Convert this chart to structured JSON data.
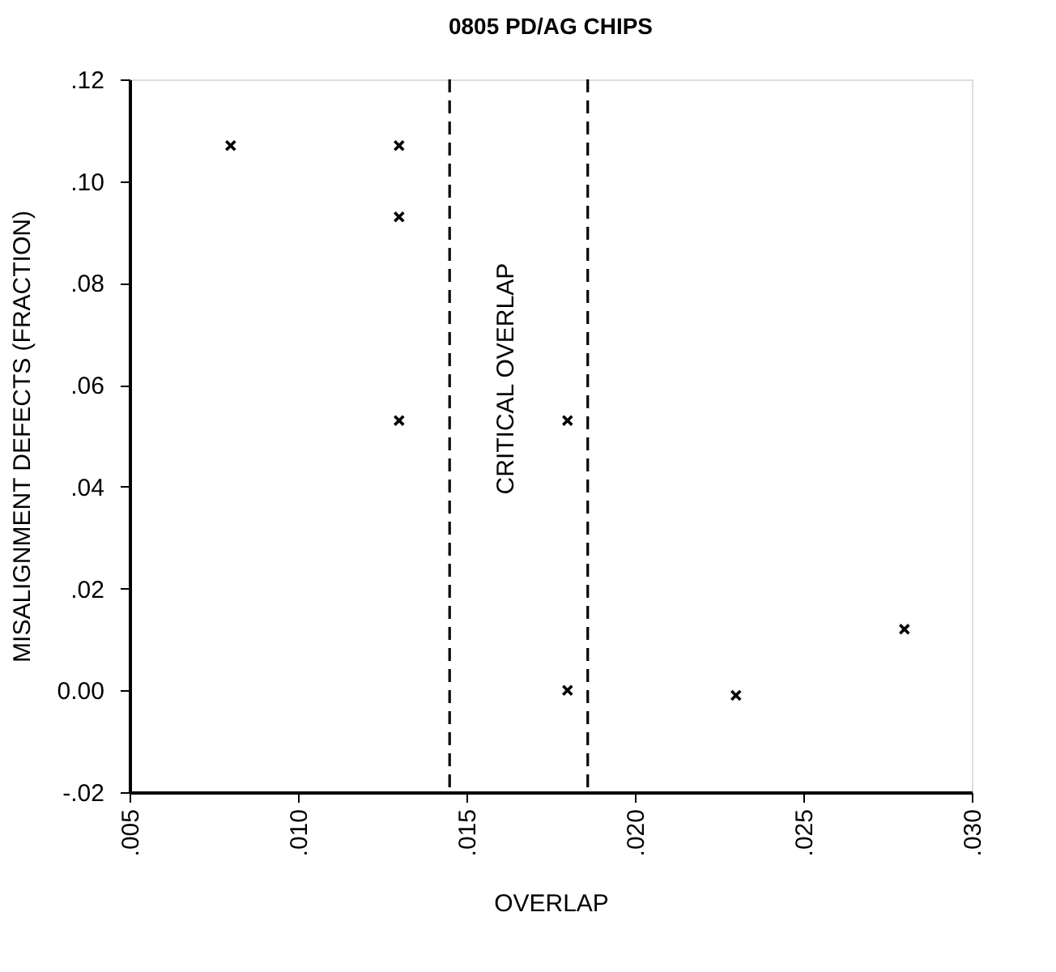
{
  "chart_data": {
    "type": "scatter",
    "title": "0805 PD/AG CHIPS",
    "xlabel": "OVERLAP",
    "ylabel": "MISALIGNMENT DEFECTS (FRACTION)",
    "x": [
      0.008,
      0.013,
      0.013,
      0.013,
      0.018,
      0.018,
      0.023,
      0.028
    ],
    "series": [
      {
        "color": "#000000",
        "values": [
          0.107,
          0.107,
          0.093,
          0.053,
          0.053,
          0.0,
          -0.001,
          0.012
        ]
      }
    ],
    "marker": "cross",
    "grid": false,
    "xlim": [
      0.005,
      0.03
    ],
    "xticks": [
      {
        "value": 0.005,
        "label": ".005"
      },
      {
        "value": 0.01,
        "label": ".010"
      },
      {
        "value": 0.015,
        "label": ".015"
      },
      {
        "value": 0.02,
        "label": ".020"
      },
      {
        "value": 0.025,
        "label": ".025"
      },
      {
        "value": 0.03,
        "label": ".030"
      }
    ],
    "ylim": [
      -0.02,
      0.12
    ],
    "yticks": [
      {
        "value": -0.02,
        "label": "-.02"
      },
      {
        "value": 0.0,
        "label": "0.00"
      },
      {
        "value": 0.02,
        "label": ".02"
      },
      {
        "value": 0.04,
        "label": ".04"
      },
      {
        "value": 0.06,
        "label": ".06"
      },
      {
        "value": 0.08,
        "label": ".08"
      },
      {
        "value": 0.1,
        "label": ".10"
      },
      {
        "value": 0.12,
        "label": ".12"
      }
    ],
    "ref_lines": [
      {
        "axis": "x",
        "value": 0.0145,
        "line_style": "dashed",
        "color": "#000000"
      },
      {
        "axis": "x",
        "value": 0.0186,
        "line_style": "dashed",
        "color": "#000000"
      }
    ],
    "annotations": [
      "CRITICAL OVERLAP"
    ]
  }
}
